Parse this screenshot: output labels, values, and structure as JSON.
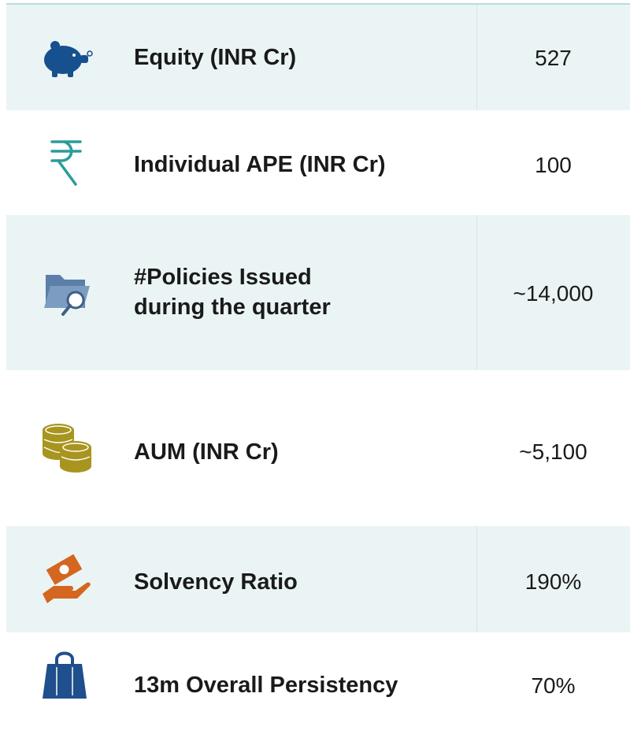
{
  "rows": [
    {
      "label_lines": [
        "Equity (INR Cr)"
      ],
      "value": "527"
    },
    {
      "label_lines": [
        "Individual APE (INR Cr)"
      ],
      "value": "100"
    },
    {
      "label_lines": [
        "#Policies Issued",
        "during the quarter"
      ],
      "value": "~14,000"
    },
    {
      "label_lines": [
        "AUM (INR Cr)"
      ],
      "value": "~5,100"
    },
    {
      "label_lines": [
        "Solvency Ratio"
      ],
      "value": "190%"
    },
    {
      "label_lines": [
        "13m Overall Persistency"
      ],
      "value": "70%"
    }
  ]
}
